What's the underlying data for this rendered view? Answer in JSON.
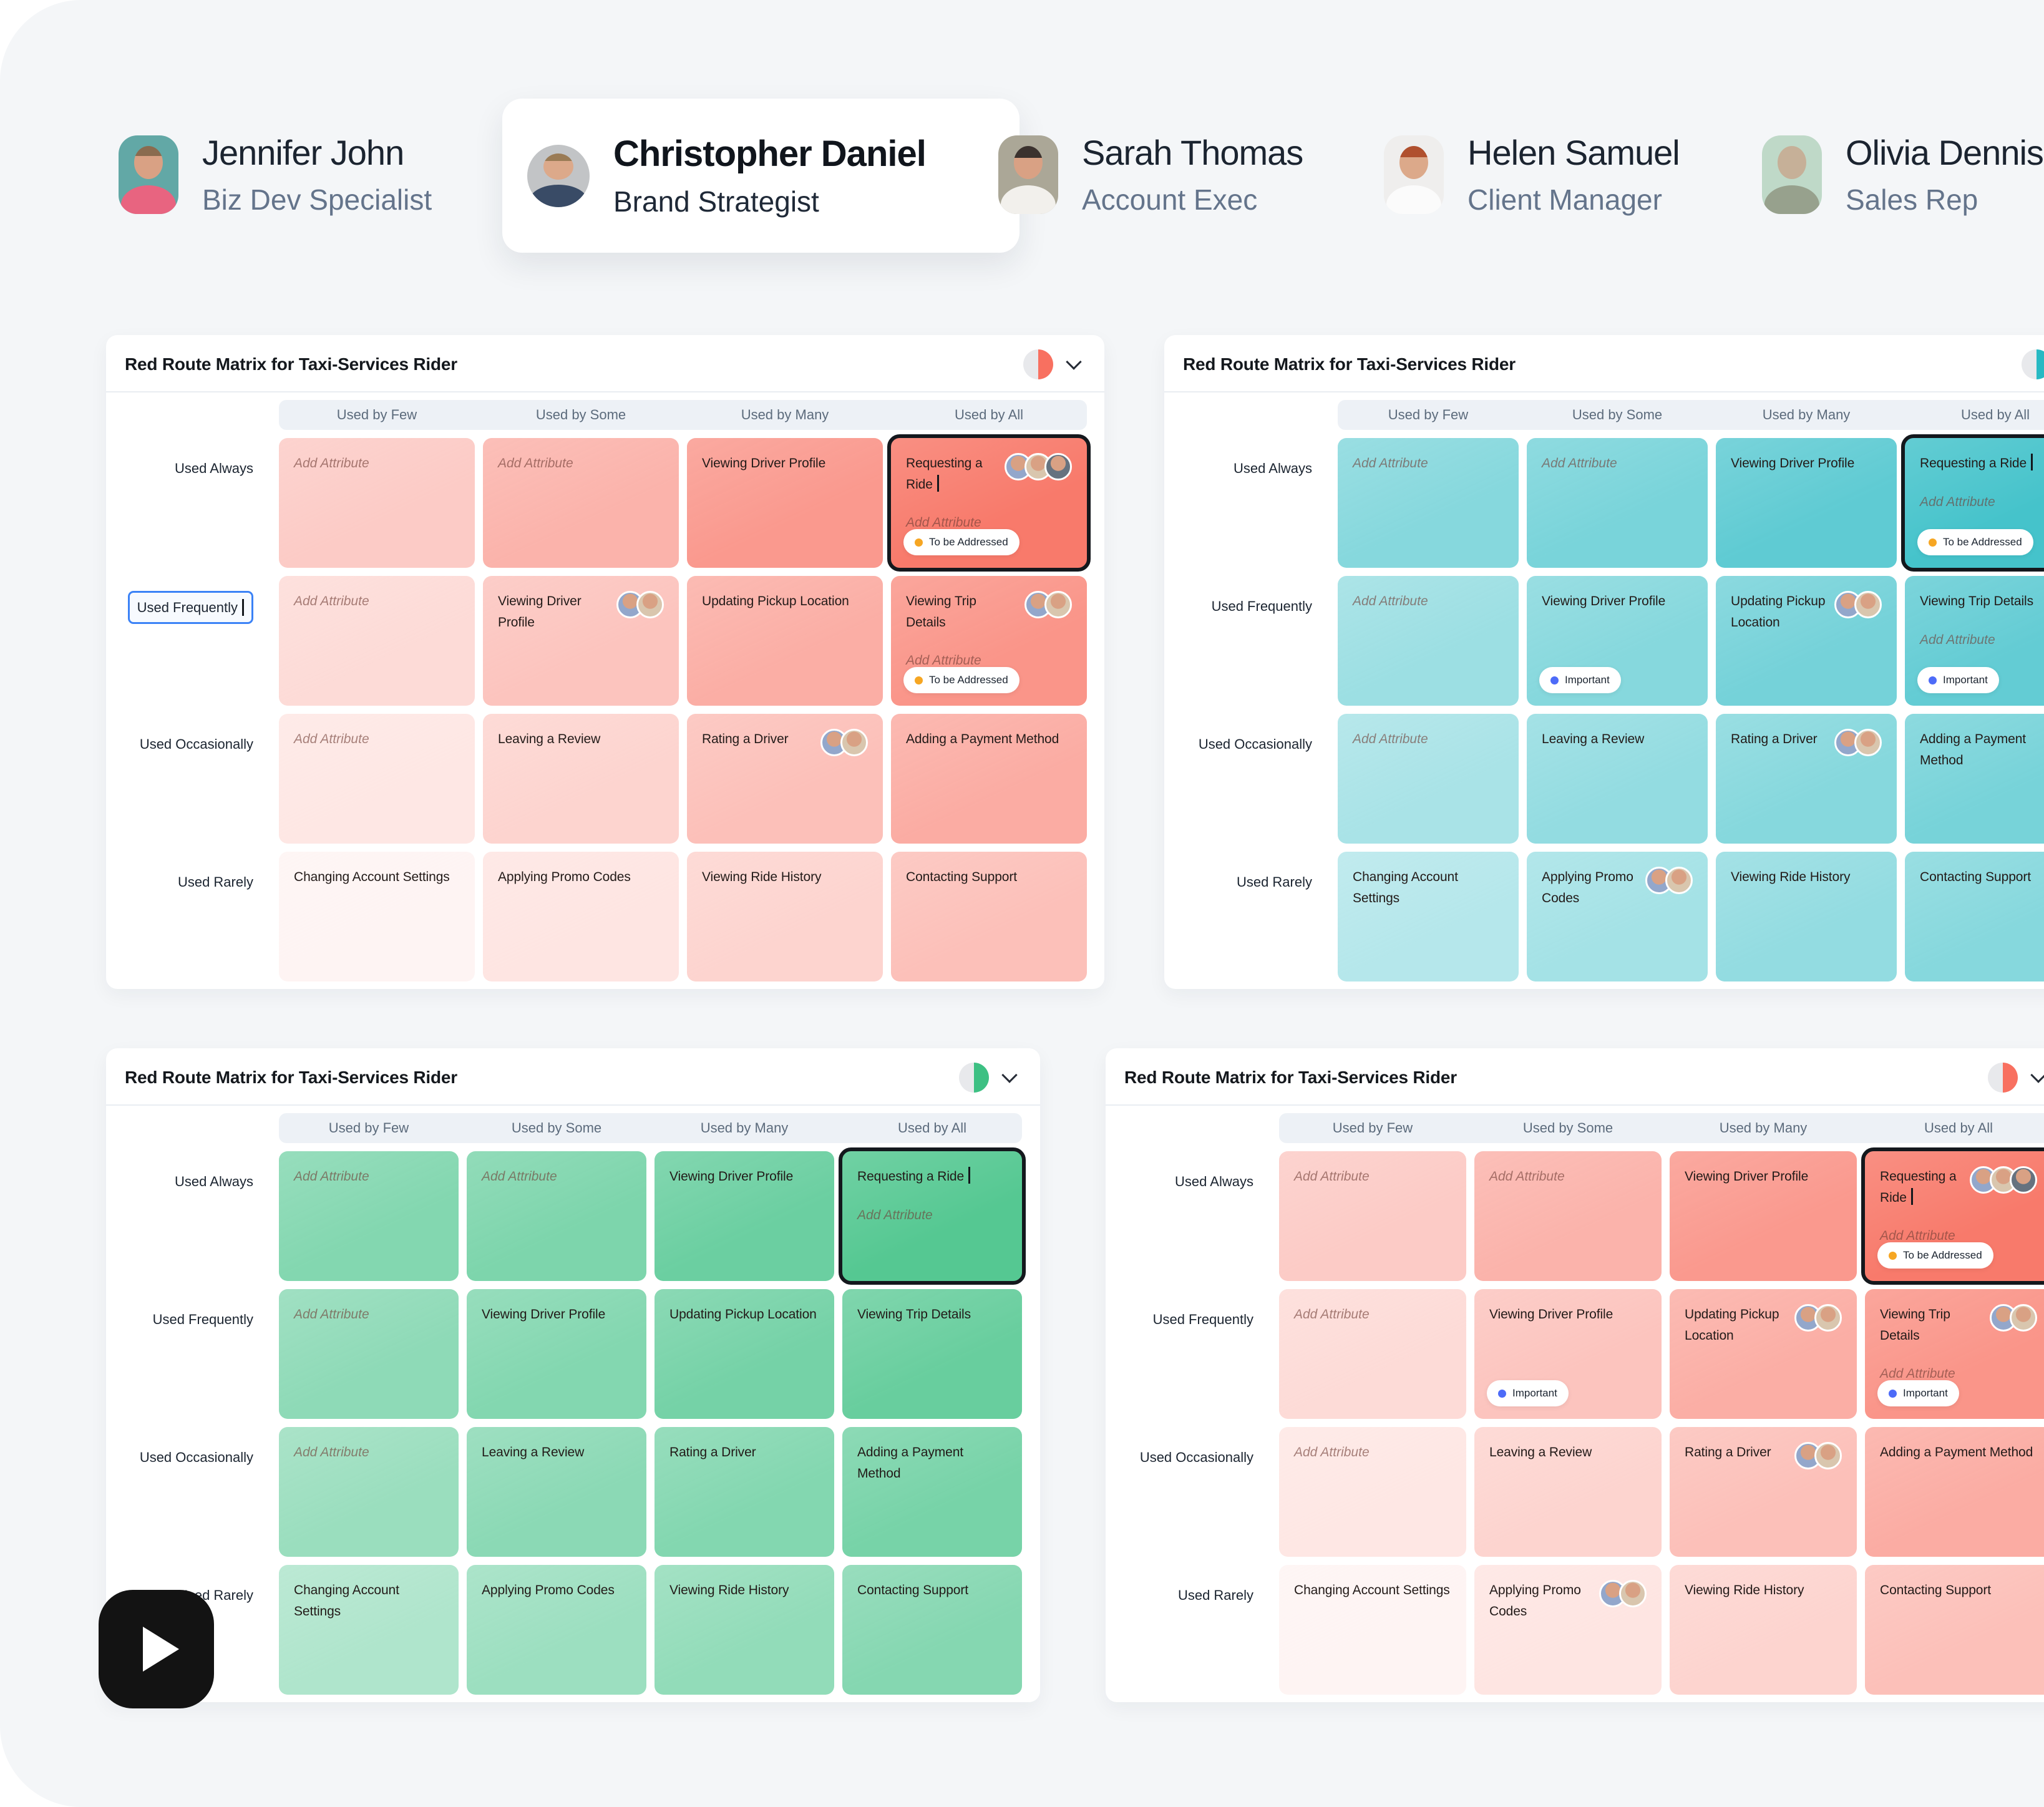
{
  "people": [
    {
      "name": "Jennifer John",
      "role": "Biz Dev Specialist",
      "selected": false
    },
    {
      "name": "Christopher Daniel",
      "role": "Brand Strategist",
      "selected": true
    },
    {
      "name": "Sarah Thomas",
      "role": "Account Exec",
      "selected": false
    },
    {
      "name": "Helen Samuel",
      "role": "Client Manager",
      "selected": false
    },
    {
      "name": "Olivia Dennis",
      "role": "Sales Rep",
      "selected": false
    }
  ],
  "badges": {
    "to_be_addressed": {
      "label": "To be Addressed",
      "dot": "#F6A623"
    },
    "important": {
      "label": "Important",
      "dot": "#4D6BF8"
    }
  },
  "ui": {
    "highlight_blue": "#3B82F6",
    "selected_border": "#14181D",
    "header_band": "#EDF1F6"
  },
  "panels": [
    {
      "title": "Red Route Matrix for Taxi-Services Rider",
      "tone": "red",
      "accent": "#F87060",
      "columns": [
        "Used by Few",
        "Used by Some",
        "Used by Many",
        "Used by All"
      ],
      "rows": [
        "Used Always",
        "Used Frequently",
        "Used Occasionally",
        "Used Rarely"
      ],
      "editing_row_index": 1,
      "cells": [
        [
          {
            "placeholder": "Add Attribute"
          },
          {
            "placeholder": "Add Attribute"
          },
          {
            "text": "Viewing Driver Profile"
          },
          {
            "text": "Requesting a Ride",
            "cursor": true,
            "avatars": 3,
            "secondary_placeholder": "Add Attribute",
            "badge": "to_be_addressed",
            "selected": true
          }
        ],
        [
          {
            "placeholder": "Add Attribute"
          },
          {
            "text": "Viewing Driver Profile",
            "avatars": 2
          },
          {
            "text": "Updating Pickup Location"
          },
          {
            "text": "Viewing Trip Details",
            "avatars": 2,
            "secondary_placeholder": "Add Attribute",
            "badge": "to_be_addressed"
          }
        ],
        [
          {
            "placeholder": "Add Attribute"
          },
          {
            "text": "Leaving a Review"
          },
          {
            "text": "Rating a Driver",
            "avatars": 2
          },
          {
            "text": "Adding a Payment Method"
          }
        ],
        [
          {
            "text": "Changing Account Settings"
          },
          {
            "text": "Applying Promo Codes"
          },
          {
            "text": "Viewing Ride History"
          },
          {
            "text": "Contacting Support"
          }
        ]
      ]
    },
    {
      "title": "Red Route Matrix for Taxi-Services Rider",
      "tone": "teal",
      "accent": "#27B9C3",
      "columns": [
        "Used by Few",
        "Used by Some",
        "Used by Many",
        "Used by All"
      ],
      "rows": [
        "Used Always",
        "Used Frequently",
        "Used Occasionally",
        "Used Rarely"
      ],
      "editing_row_index": null,
      "cells": [
        [
          {
            "placeholder": "Add Attribute"
          },
          {
            "placeholder": "Add Attribute"
          },
          {
            "text": "Viewing Driver Profile"
          },
          {
            "text": "Requesting a Ride",
            "cursor": true,
            "secondary_placeholder": "Add Attribute",
            "badge": "to_be_addressed",
            "selected": true
          }
        ],
        [
          {
            "placeholder": "Add Attribute"
          },
          {
            "text": "Viewing Driver Profile",
            "badge": "important"
          },
          {
            "text": "Updating Pickup Location",
            "avatars": 2
          },
          {
            "text": "Viewing Trip Details",
            "secondary_placeholder": "Add Attribute",
            "badge": "important"
          }
        ],
        [
          {
            "placeholder": "Add Attribute"
          },
          {
            "text": "Leaving a Review"
          },
          {
            "text": "Rating a Driver",
            "avatars": 2
          },
          {
            "text": "Adding a Payment Method"
          }
        ],
        [
          {
            "text": "Changing Account Settings"
          },
          {
            "text": "Applying Promo Codes",
            "avatars": 2
          },
          {
            "text": "Viewing Ride History"
          },
          {
            "text": "Contacting Support"
          }
        ]
      ]
    },
    {
      "title": "Red Route Matrix for Taxi-Services Rider",
      "tone": "green",
      "accent": "#3DC083",
      "columns": [
        "Used by Few",
        "Used by Some",
        "Used by Many",
        "Used by All"
      ],
      "rows": [
        "Used Always",
        "Used Frequently",
        "Used Occasionally",
        "Used Rarely"
      ],
      "editing_row_index": null,
      "cells": [
        [
          {
            "placeholder": "Add Attribute"
          },
          {
            "placeholder": "Add Attribute"
          },
          {
            "text": "Viewing Driver Profile"
          },
          {
            "text": "Requesting a Ride",
            "cursor": true,
            "secondary_placeholder": "Add Attribute",
            "selected": true
          }
        ],
        [
          {
            "placeholder": "Add Attribute"
          },
          {
            "text": "Viewing Driver Profile"
          },
          {
            "text": "Updating Pickup Location"
          },
          {
            "text": "Viewing Trip Details"
          }
        ],
        [
          {
            "placeholder": "Add Attribute"
          },
          {
            "text": "Leaving a Review"
          },
          {
            "text": "Rating a Driver"
          },
          {
            "text": "Adding a Payment Method"
          }
        ],
        [
          {
            "text": "Changing Account Settings"
          },
          {
            "text": "Applying Promo Codes"
          },
          {
            "text": "Viewing Ride History"
          },
          {
            "text": "Contacting Support"
          }
        ]
      ]
    },
    {
      "title": "Red Route Matrix for Taxi-Services Rider",
      "tone": "red",
      "accent": "#F87060",
      "columns": [
        "Used by Few",
        "Used by Some",
        "Used by Many",
        "Used by All"
      ],
      "rows": [
        "Used Always",
        "Used Frequently",
        "Used Occasionally",
        "Used Rarely"
      ],
      "editing_row_index": null,
      "cells": [
        [
          {
            "placeholder": "Add Attribute"
          },
          {
            "placeholder": "Add Attribute"
          },
          {
            "text": "Viewing Driver Profile"
          },
          {
            "text": "Requesting a Ride",
            "cursor": true,
            "avatars": 3,
            "secondary_placeholder": "Add Attribute",
            "badge": "to_be_addressed",
            "selected": true
          }
        ],
        [
          {
            "placeholder": "Add Attribute"
          },
          {
            "text": "Viewing Driver Profile",
            "badge": "important"
          },
          {
            "text": "Updating Pickup Location",
            "avatars": 2
          },
          {
            "text": "Viewing Trip Details",
            "avatars": 2,
            "secondary_placeholder": "Add Attribute",
            "badge": "important"
          }
        ],
        [
          {
            "placeholder": "Add Attribute"
          },
          {
            "text": "Leaving a Review"
          },
          {
            "text": "Rating a Driver",
            "avatars": 2
          },
          {
            "text": "Adding a Payment Method"
          }
        ],
        [
          {
            "text": "Changing Account Settings"
          },
          {
            "text": "Applying Promo Codes",
            "avatars": 2
          },
          {
            "text": "Viewing Ride History"
          },
          {
            "text": "Contacting Support"
          }
        ]
      ]
    }
  ]
}
